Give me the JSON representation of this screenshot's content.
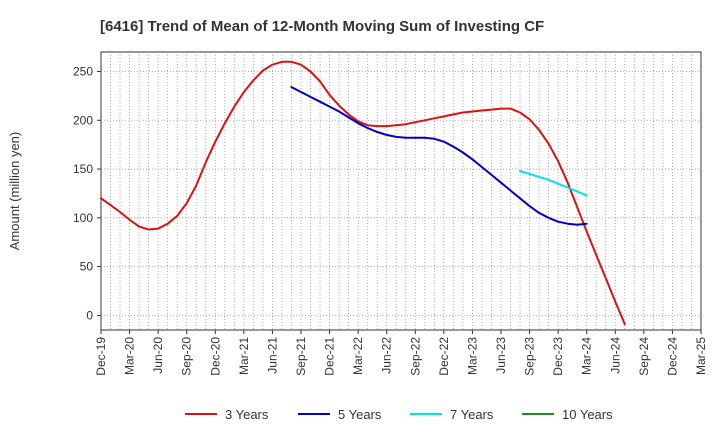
{
  "chart_data": {
    "type": "line",
    "title": "[6416]  Trend of Mean of 12-Month Moving Sum of Investing CF",
    "xlabel": "",
    "ylabel": "Amount (million yen)",
    "ylim": [
      -15,
      270
    ],
    "yticks": [
      0,
      50,
      100,
      150,
      200,
      250
    ],
    "xticks": [
      "Dec-19",
      "Mar-20",
      "Jun-20",
      "Sep-20",
      "Dec-20",
      "Mar-21",
      "Jun-21",
      "Sep-21",
      "Dec-21",
      "Mar-22",
      "Jun-22",
      "Sep-22",
      "Dec-22",
      "Mar-23",
      "Jun-23",
      "Sep-23",
      "Dec-23",
      "Mar-24",
      "Jun-24",
      "Sep-24",
      "Dec-24",
      "Mar-25"
    ],
    "x_range_months": [
      0,
      63
    ],
    "grid": true,
    "legend_position": "bottom",
    "series": [
      {
        "name": "3 Years",
        "color": "#dd1111",
        "points": [
          [
            0,
            120
          ],
          [
            1,
            113
          ],
          [
            2,
            106
          ],
          [
            3,
            98
          ],
          [
            4,
            91
          ],
          [
            5,
            88
          ],
          [
            6,
            89
          ],
          [
            7,
            94
          ],
          [
            8,
            102
          ],
          [
            9,
            115
          ],
          [
            10,
            133
          ],
          [
            11,
            157
          ],
          [
            12,
            178
          ],
          [
            13,
            197
          ],
          [
            14,
            214
          ],
          [
            15,
            229
          ],
          [
            16,
            241
          ],
          [
            17,
            251
          ],
          [
            18,
            257
          ],
          [
            19,
            260
          ],
          [
            20,
            260
          ],
          [
            21,
            257
          ],
          [
            22,
            250
          ],
          [
            23,
            240
          ],
          [
            24,
            226
          ],
          [
            25,
            215
          ],
          [
            26,
            206
          ],
          [
            27,
            199
          ],
          [
            28,
            195
          ],
          [
            29,
            194
          ],
          [
            30,
            194
          ],
          [
            31,
            195
          ],
          [
            32,
            196
          ],
          [
            33,
            198
          ],
          [
            34,
            200
          ],
          [
            35,
            202
          ],
          [
            36,
            204
          ],
          [
            37,
            206
          ],
          [
            38,
            208
          ],
          [
            39,
            209
          ],
          [
            40,
            210
          ],
          [
            41,
            211
          ],
          [
            42,
            212
          ],
          [
            43,
            212
          ],
          [
            44,
            208
          ],
          [
            45,
            201
          ],
          [
            46,
            190
          ],
          [
            47,
            176
          ],
          [
            48,
            158
          ],
          [
            49,
            136
          ],
          [
            50,
            111
          ],
          [
            51,
            86
          ],
          [
            52,
            62
          ],
          [
            53,
            38
          ],
          [
            54,
            14
          ],
          [
            55,
            -9
          ]
        ]
      },
      {
        "name": "5 Years",
        "color": "#0000cc",
        "points": [
          [
            20,
            234
          ],
          [
            21,
            229
          ],
          [
            22,
            224
          ],
          [
            23,
            219
          ],
          [
            24,
            214
          ],
          [
            25,
            209
          ],
          [
            26,
            203
          ],
          [
            27,
            197
          ],
          [
            28,
            192
          ],
          [
            29,
            188
          ],
          [
            30,
            185
          ],
          [
            31,
            183
          ],
          [
            32,
            182
          ],
          [
            33,
            182
          ],
          [
            34,
            182
          ],
          [
            35,
            181
          ],
          [
            36,
            178
          ],
          [
            37,
            173
          ],
          [
            38,
            167
          ],
          [
            39,
            160
          ],
          [
            40,
            152
          ],
          [
            41,
            144
          ],
          [
            42,
            136
          ],
          [
            43,
            128
          ],
          [
            44,
            120
          ],
          [
            45,
            112
          ],
          [
            46,
            105
          ],
          [
            47,
            100
          ],
          [
            48,
            96
          ],
          [
            49,
            94
          ],
          [
            50,
            93
          ],
          [
            51,
            94
          ]
        ]
      },
      {
        "name": "7 Years",
        "color": "#00e5e5",
        "points": [
          [
            44,
            148
          ],
          [
            45,
            145
          ],
          [
            46,
            142
          ],
          [
            47,
            139
          ],
          [
            48,
            135
          ],
          [
            49,
            131
          ],
          [
            50,
            127
          ],
          [
            51,
            123
          ]
        ]
      },
      {
        "name": "10 Years",
        "color": "#228b22",
        "points": []
      }
    ]
  }
}
